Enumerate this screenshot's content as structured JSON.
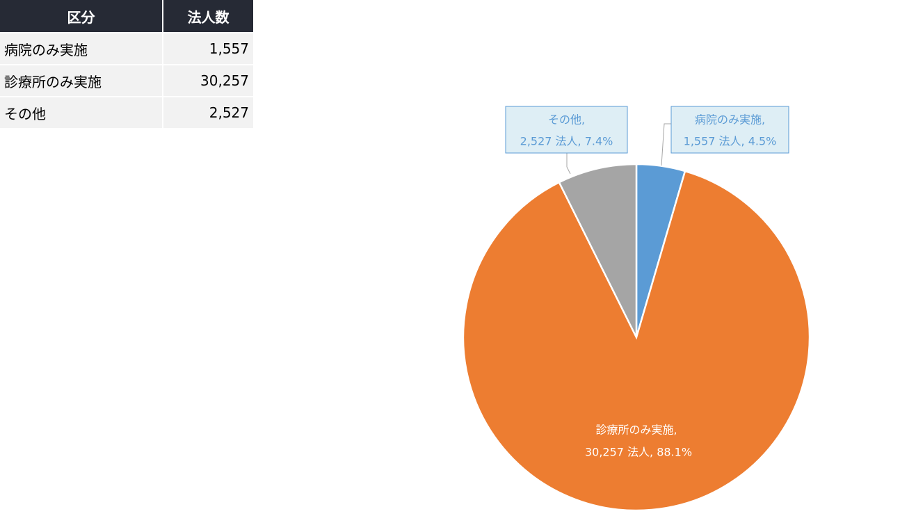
{
  "table": {
    "header": [
      "区分",
      "法人数"
    ],
    "rows": [
      [
        "病院のみ実施",
        "1,557"
      ],
      [
        "診療所のみ実施",
        "30,257"
      ],
      [
        "その他",
        "2,527"
      ]
    ]
  },
  "chart_data": {
    "type": "pie",
    "categories": [
      "病院のみ実施",
      "診療所のみ実施",
      "その他"
    ],
    "label_names": [
      "病院のみ実施,",
      "診療所のみ実施,",
      "その他,"
    ],
    "values": [
      1557,
      30257,
      2527
    ],
    "value_labels": [
      "1,557 法人, 4.5%",
      "30,257 法人, 88.1%",
      "2,527 法人, 7.4%"
    ],
    "colors": [
      "#5b9bd5",
      "#ed7d31",
      "#a5a5a5"
    ]
  }
}
